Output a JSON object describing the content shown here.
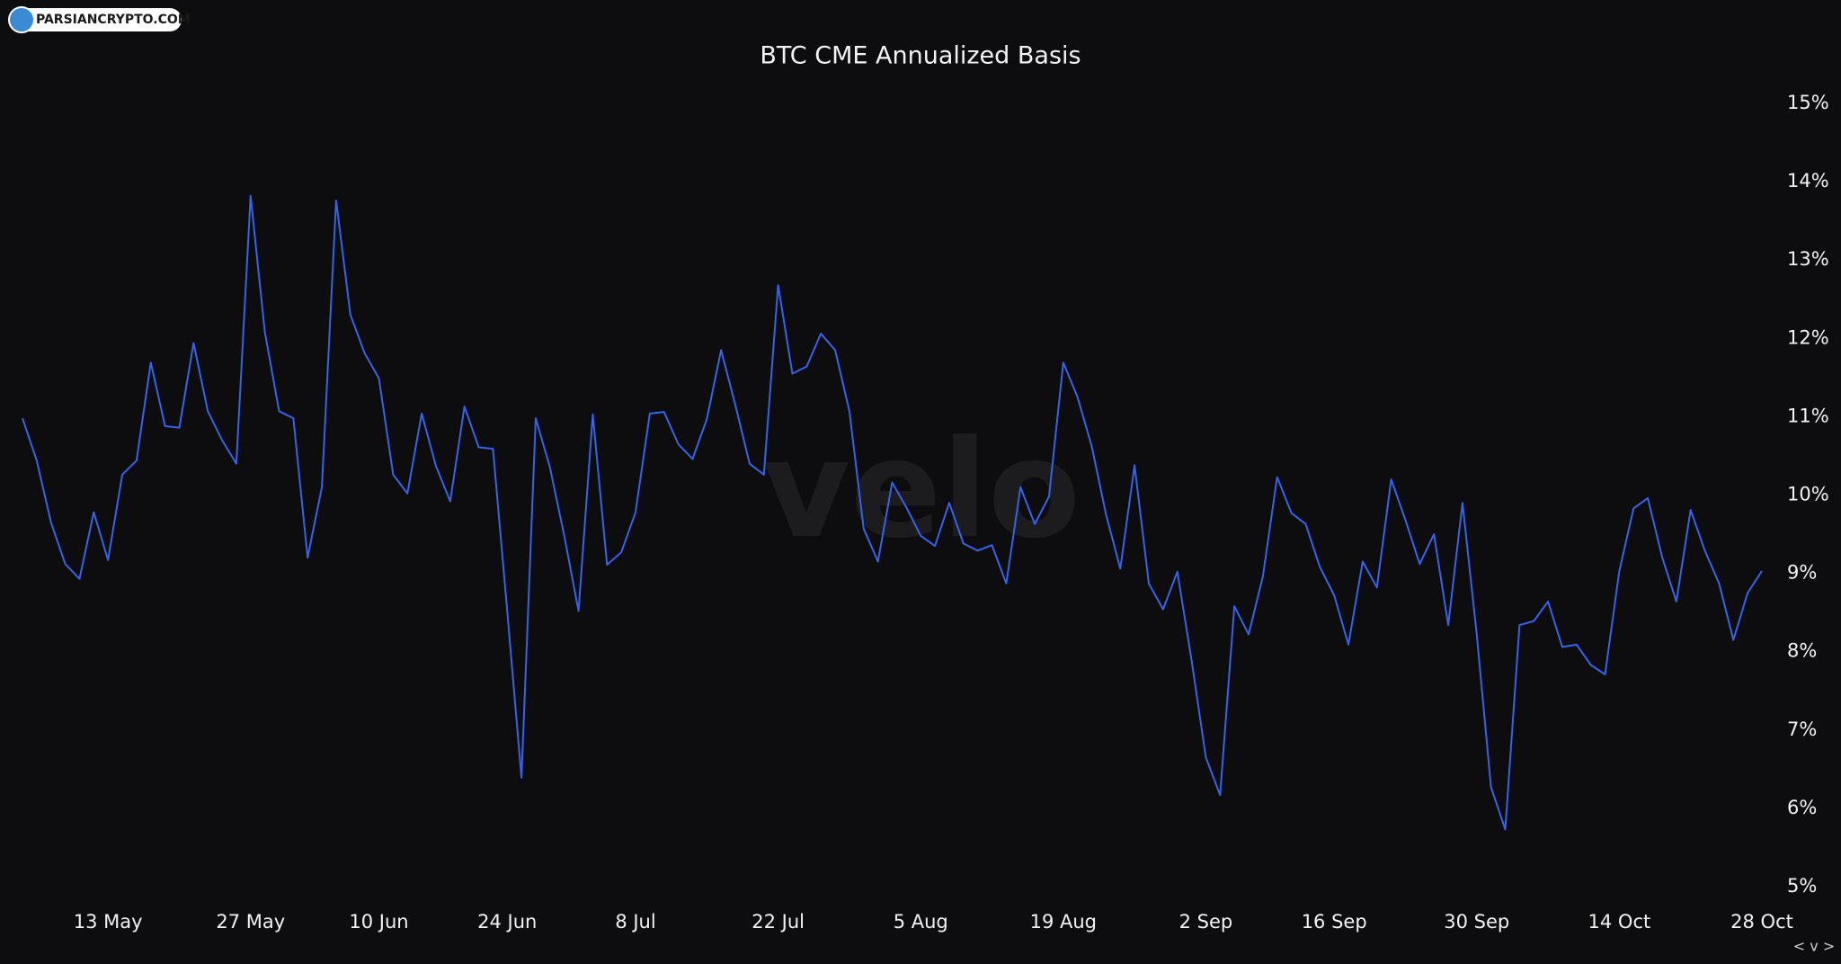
{
  "chart_data": {
    "type": "line",
    "title": "BTC CME Annualized Basis",
    "logo_text": "PARSIANCRYPTO.COM",
    "watermark": "velo",
    "controls": "< v >",
    "color": "#3563e9",
    "categories": [
      null,
      null,
      null,
      null,
      null,
      null,
      "13 May",
      null,
      null,
      null,
      null,
      null,
      null,
      null,
      null,
      null,
      "27 May",
      null,
      null,
      null,
      null,
      null,
      null,
      null,
      null,
      "10 Jun",
      null,
      null,
      null,
      null,
      null,
      null,
      null,
      null,
      "24 Jun",
      null,
      null,
      null,
      null,
      null,
      null,
      null,
      null,
      "8 Jul",
      null,
      null,
      null,
      null,
      null,
      null,
      null,
      null,
      null,
      "22 Jul",
      null,
      null,
      null,
      null,
      null,
      null,
      null,
      null,
      null,
      "5 Aug",
      null,
      null,
      null,
      null,
      null,
      null,
      null,
      null,
      null,
      "19 Aug",
      null,
      null,
      null,
      null,
      null,
      null,
      null,
      null,
      null,
      "2 Sep",
      null,
      null,
      null,
      null,
      null,
      null,
      null,
      null,
      "16 Sep",
      null,
      null,
      null,
      null,
      null,
      null,
      null,
      null,
      null,
      "30 Sep",
      null,
      null,
      null,
      null,
      null,
      null,
      null,
      null,
      null,
      "14 Oct",
      null,
      null,
      null,
      null,
      null,
      null,
      null,
      null,
      null,
      "28 Oct"
    ],
    "values": [
      10.98,
      10.44,
      9.65,
      9.12,
      8.93,
      9.78,
      9.17,
      10.26,
      10.44,
      11.69,
      10.88,
      10.86,
      11.94,
      11.07,
      10.7,
      10.4,
      13.82,
      12.08,
      11.07,
      10.98,
      9.2,
      10.1,
      13.76,
      12.3,
      11.81,
      11.49,
      10.26,
      10.02,
      11.04,
      10.37,
      9.92,
      11.13,
      10.61,
      10.59,
      8.52,
      6.39,
      10.98,
      10.35,
      9.48,
      8.52,
      11.03,
      9.11,
      9.27,
      9.78,
      11.04,
      11.06,
      10.65,
      10.46,
      10.97,
      11.85,
      11.15,
      10.4,
      10.26,
      12.68,
      11.55,
      11.64,
      12.06,
      11.85,
      11.07,
      9.57,
      9.15,
      10.16,
      9.84,
      9.48,
      9.35,
      9.9,
      9.38,
      9.29,
      9.36,
      8.87,
      10.1,
      9.63,
      9.98,
      11.69,
      11.25,
      10.62,
      9.75,
      9.06,
      10.38,
      8.87,
      8.54,
      9.02,
      7.89,
      6.65,
      6.17,
      8.58,
      8.22,
      8.96,
      10.23,
      9.77,
      9.63,
      9.08,
      8.72,
      8.09,
      9.15,
      8.82,
      10.2,
      9.68,
      9.12,
      9.5,
      8.34,
      9.9,
      8.22,
      6.27,
      5.73,
      8.34,
      8.39,
      8.64,
      8.06,
      8.09,
      7.83,
      7.71,
      9.03,
      9.83,
      9.96,
      9.21,
      8.64,
      9.81,
      9.29,
      8.87,
      8.15,
      8.75,
      9.03
    ],
    "ylim": [
      5,
      15
    ],
    "yticks": [
      {
        "value": 5,
        "label": "5%"
      },
      {
        "value": 6,
        "label": "6%"
      },
      {
        "value": 7,
        "label": "7%"
      },
      {
        "value": 8,
        "label": "8%"
      },
      {
        "value": 9,
        "label": "9%"
      },
      {
        "value": 10,
        "label": "10%"
      },
      {
        "value": 11,
        "label": "11%"
      },
      {
        "value": 12,
        "label": "12%"
      },
      {
        "value": 13,
        "label": "13%"
      },
      {
        "value": 14,
        "label": "14%"
      },
      {
        "value": 15,
        "label": "15%"
      }
    ],
    "grid": false
  }
}
